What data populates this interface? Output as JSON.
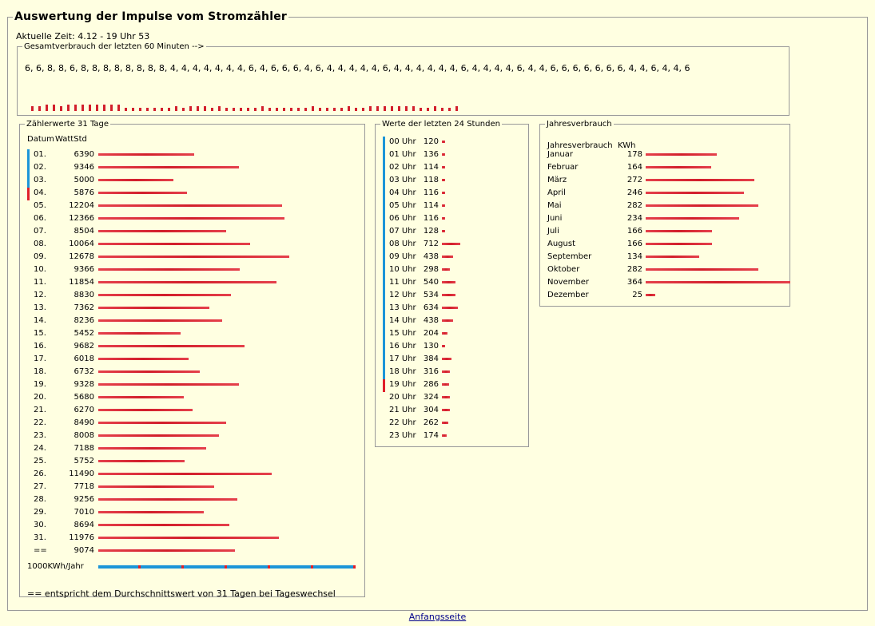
{
  "title": "Auswertung der Impulse vom Stromzähler",
  "current_time": "Aktuelle Zeit: 4.12 - 19 Uhr 53",
  "minutes": {
    "legend": "Gesamtverbrauch der letzten 60 Minuten -->",
    "values_text": "6, 6, 8, 8, 6, 8, 8, 8, 8, 8, 8, 8, 8, 4, 4, 4, 4, 4, 4, 4, 6, 4, 6, 6, 6, 4, 6, 4, 4, 4, 4, 4, 6, 4, 4, 4, 4, 4, 4, 6, 4, 4, 4, 4, 6, 4, 4, 6, 6, 6, 6, 6, 6, 6, 4, 4, 6, 4, 4, 6",
    "bar_values": [
      6,
      6,
      8,
      8,
      6,
      8,
      8,
      8,
      8,
      8,
      8,
      8,
      8,
      4,
      4,
      4,
      4,
      4,
      4,
      4,
      6,
      4,
      6,
      6,
      6,
      4,
      6,
      4,
      4,
      4,
      4,
      4,
      6,
      4,
      4,
      4,
      4,
      4,
      4,
      6,
      4,
      4,
      4,
      4,
      6,
      4,
      4,
      6,
      6,
      6,
      6,
      6,
      6,
      6,
      4,
      4,
      6,
      4,
      4,
      6
    ]
  },
  "days": {
    "legend": "Zählerwerte 31 Tage",
    "header_date": "Datum",
    "header_value": "WattStd",
    "rows": [
      {
        "label": "01.",
        "value": 6390
      },
      {
        "label": "02.",
        "value": 9346
      },
      {
        "label": "03.",
        "value": 5000
      },
      {
        "label": "04.",
        "value": 5876
      },
      {
        "label": "05.",
        "value": 12204
      },
      {
        "label": "06.",
        "value": 12366
      },
      {
        "label": "07.",
        "value": 8504
      },
      {
        "label": "08.",
        "value": 10064
      },
      {
        "label": "09.",
        "value": 12678
      },
      {
        "label": "10.",
        "value": 9366
      },
      {
        "label": "11.",
        "value": 11854
      },
      {
        "label": "12.",
        "value": 8830
      },
      {
        "label": "13.",
        "value": 7362
      },
      {
        "label": "14.",
        "value": 8236
      },
      {
        "label": "15.",
        "value": 5452
      },
      {
        "label": "16.",
        "value": 9682
      },
      {
        "label": "17.",
        "value": 6018
      },
      {
        "label": "18.",
        "value": 6732
      },
      {
        "label": "19.",
        "value": 9328
      },
      {
        "label": "20.",
        "value": 5680
      },
      {
        "label": "21.",
        "value": 6270
      },
      {
        "label": "22.",
        "value": 8490
      },
      {
        "label": "23.",
        "value": 8008
      },
      {
        "label": "24.",
        "value": 7188
      },
      {
        "label": "25.",
        "value": 5752
      },
      {
        "label": "26.",
        "value": 11490
      },
      {
        "label": "27.",
        "value": 7718
      },
      {
        "label": "28.",
        "value": 9256
      },
      {
        "label": "29.",
        "value": 7010
      },
      {
        "label": "30.",
        "value": 8694
      },
      {
        "label": "31.",
        "value": 11976
      },
      {
        "label": "==",
        "value": 9074
      }
    ],
    "scale_label": "1000KWh/Jahr",
    "note": "== entspricht dem Durchschnittswert von 31 Tagen bei Tageswechsel"
  },
  "hours": {
    "legend": "Werte der letzten 24 Stunden",
    "rows": [
      {
        "label": "00 Uhr",
        "value": 120
      },
      {
        "label": "01 Uhr",
        "value": 136
      },
      {
        "label": "02 Uhr",
        "value": 114
      },
      {
        "label": "03 Uhr",
        "value": 118
      },
      {
        "label": "04 Uhr",
        "value": 116
      },
      {
        "label": "05 Uhr",
        "value": 114
      },
      {
        "label": "06 Uhr",
        "value": 116
      },
      {
        "label": "07 Uhr",
        "value": 128
      },
      {
        "label": "08 Uhr",
        "value": 712
      },
      {
        "label": "09 Uhr",
        "value": 438
      },
      {
        "label": "10 Uhr",
        "value": 298
      },
      {
        "label": "11 Uhr",
        "value": 540
      },
      {
        "label": "12 Uhr",
        "value": 534
      },
      {
        "label": "13 Uhr",
        "value": 634
      },
      {
        "label": "14 Uhr",
        "value": 438
      },
      {
        "label": "15 Uhr",
        "value": 204
      },
      {
        "label": "16 Uhr",
        "value": 130
      },
      {
        "label": "17 Uhr",
        "value": 384
      },
      {
        "label": "18 Uhr",
        "value": 316
      },
      {
        "label": "19 Uhr",
        "value": 286
      },
      {
        "label": "20 Uhr",
        "value": 324
      },
      {
        "label": "21 Uhr",
        "value": 304
      },
      {
        "label": "22 Uhr",
        "value": 262
      },
      {
        "label": "23 Uhr",
        "value": 174
      }
    ]
  },
  "year": {
    "legend": "Jahresverbrauch",
    "header_label": "Jahresverbrauch",
    "header_unit": "KWh",
    "rows": [
      {
        "label": "Januar",
        "value": 178
      },
      {
        "label": "Februar",
        "value": 164
      },
      {
        "label": "März",
        "value": 272
      },
      {
        "label": "April",
        "value": 246
      },
      {
        "label": "Mai",
        "value": 282
      },
      {
        "label": "Juni",
        "value": 234
      },
      {
        "label": "Juli",
        "value": 166
      },
      {
        "label": "August",
        "value": 166
      },
      {
        "label": "September",
        "value": 134
      },
      {
        "label": "Oktober",
        "value": 282
      },
      {
        "label": "November",
        "value": 364
      },
      {
        "label": "Dezember",
        "value": 25
      }
    ]
  },
  "footer": {
    "link_label": "Anfangsseite"
  },
  "colors": {
    "background": "#ffffe1",
    "bar": "#d21f2b",
    "marker_blue": "#1c95d8",
    "marker_red": "#e02029"
  }
}
